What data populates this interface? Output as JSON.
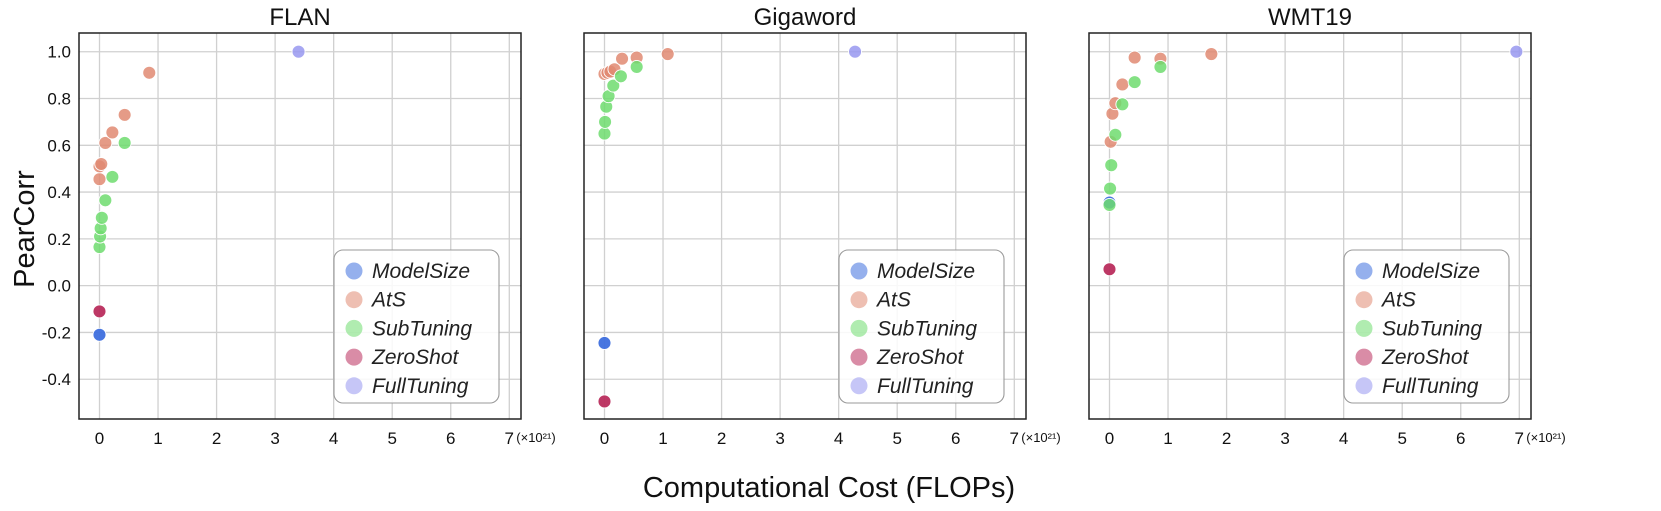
{
  "chart_data": {
    "type": "scatter",
    "ylabel": "PearCorr",
    "xlabel": "Computational Cost (FLOPs)",
    "x_scale_label": "(×10²¹)",
    "xlim": [
      -0.35,
      7.2
    ],
    "ylim": [
      -0.57,
      1.08
    ],
    "x_ticks": [
      "0",
      "1",
      "2",
      "3",
      "4",
      "5",
      "6",
      "7"
    ],
    "y_ticks": [
      "1.0",
      "0.8",
      "0.6",
      "0.4",
      "0.2",
      "0.0",
      "-0.2",
      "-0.4"
    ],
    "series_colors": {
      "ModelSize": "#3e6fde",
      "AtS": "#e08a72",
      "SubTuning": "#6fdc6f",
      "ZeroShot": "#b92d5d",
      "FullTuning": "#9898f0"
    },
    "legend": [
      "ModelSize",
      "AtS",
      "SubTuning",
      "ZeroShot",
      "FullTuning"
    ],
    "panels": [
      {
        "title": "FLAN",
        "series": [
          {
            "name": "ModelSize",
            "points": [
              [
                0.0,
                -0.21
              ]
            ]
          },
          {
            "name": "AtS",
            "points": [
              [
                0.0,
                0.455
              ],
              [
                0.0,
                0.51
              ],
              [
                0.03,
                0.52
              ],
              [
                0.1,
                0.61
              ],
              [
                0.22,
                0.655
              ],
              [
                0.43,
                0.73
              ],
              [
                0.85,
                0.91
              ]
            ]
          },
          {
            "name": "SubTuning",
            "points": [
              [
                0.0,
                0.165
              ],
              [
                0.01,
                0.21
              ],
              [
                0.02,
                0.245
              ],
              [
                0.04,
                0.29
              ],
              [
                0.1,
                0.365
              ],
              [
                0.22,
                0.465
              ],
              [
                0.43,
                0.61
              ]
            ]
          },
          {
            "name": "ZeroShot",
            "points": [
              [
                0.0,
                -0.11
              ]
            ]
          },
          {
            "name": "FullTuning",
            "points": [
              [
                3.4,
                1.0
              ]
            ]
          }
        ]
      },
      {
        "title": "Gigaword",
        "series": [
          {
            "name": "ModelSize",
            "points": [
              [
                0.0,
                -0.245
              ]
            ]
          },
          {
            "name": "AtS",
            "points": [
              [
                0.0,
                0.905
              ],
              [
                0.05,
                0.91
              ],
              [
                0.1,
                0.915
              ],
              [
                0.17,
                0.925
              ],
              [
                0.3,
                0.97
              ],
              [
                0.55,
                0.975
              ],
              [
                1.08,
                0.99
              ]
            ]
          },
          {
            "name": "SubTuning",
            "points": [
              [
                0.0,
                0.65
              ],
              [
                0.01,
                0.7
              ],
              [
                0.03,
                0.765
              ],
              [
                0.07,
                0.81
              ],
              [
                0.15,
                0.855
              ],
              [
                0.28,
                0.895
              ],
              [
                0.55,
                0.935
              ]
            ]
          },
          {
            "name": "ZeroShot",
            "points": [
              [
                0.0,
                -0.495
              ]
            ]
          },
          {
            "name": "FullTuning",
            "points": [
              [
                4.28,
                1.0
              ]
            ]
          }
        ]
      },
      {
        "title": "WMT19",
        "series": [
          {
            "name": "ModelSize",
            "points": [
              [
                0.0,
                0.355
              ]
            ]
          },
          {
            "name": "AtS",
            "points": [
              [
                0.02,
                0.615
              ],
              [
                0.05,
                0.735
              ],
              [
                0.1,
                0.78
              ],
              [
                0.22,
                0.86
              ],
              [
                0.43,
                0.975
              ],
              [
                0.87,
                0.97
              ],
              [
                1.74,
                0.99
              ]
            ]
          },
          {
            "name": "SubTuning",
            "points": [
              [
                0.0,
                0.345
              ],
              [
                0.01,
                0.415
              ],
              [
                0.03,
                0.515
              ],
              [
                0.1,
                0.645
              ],
              [
                0.22,
                0.775
              ],
              [
                0.43,
                0.87
              ],
              [
                0.87,
                0.935
              ]
            ]
          },
          {
            "name": "ZeroShot",
            "points": [
              [
                0.0,
                0.07
              ]
            ]
          },
          {
            "name": "FullTuning",
            "points": [
              [
                6.95,
                1.0
              ]
            ]
          }
        ]
      }
    ]
  }
}
